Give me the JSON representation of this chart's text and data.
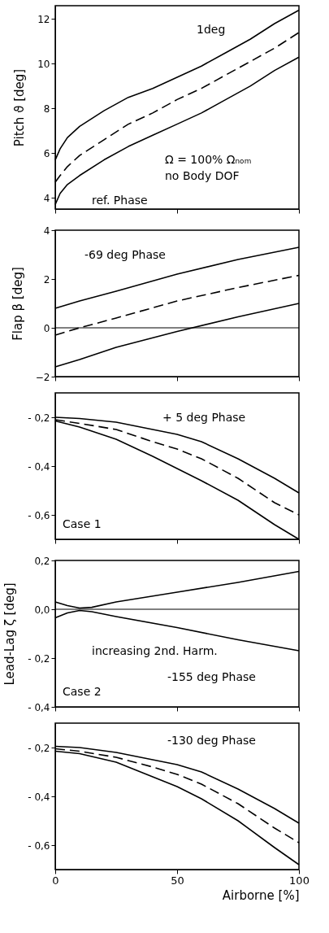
{
  "chart_data": [
    {
      "type": "line",
      "ylabel": "Pitch ϑ [deg]",
      "x": [
        0,
        2,
        5,
        10,
        20,
        30,
        40,
        50,
        60,
        70,
        80,
        90,
        100
      ],
      "series": [
        {
          "color": "#000000",
          "line_style": "solid",
          "values": [
            5.7,
            6.2,
            6.7,
            7.2,
            7.9,
            8.5,
            8.9,
            9.4,
            9.9,
            10.5,
            11.1,
            11.8,
            12.4
          ]
        },
        {
          "color": "#000000",
          "line_style": "dashed",
          "values": [
            4.7,
            5.0,
            5.4,
            5.9,
            6.6,
            7.3,
            7.8,
            8.4,
            8.9,
            9.5,
            10.1,
            10.7,
            11.4
          ]
        },
        {
          "color": "#000000",
          "line_style": "solid",
          "values": [
            3.7,
            4.2,
            4.6,
            5.0,
            5.7,
            6.3,
            6.8,
            7.3,
            7.8,
            8.4,
            9.0,
            9.7,
            10.3
          ]
        }
      ],
      "xlim": [
        0,
        100
      ],
      "xticks": [
        0,
        50,
        100
      ],
      "ylim": [
        3.5,
        12.6
      ],
      "yticks": [
        4,
        6,
        8,
        10,
        12
      ],
      "tick_labels": "y",
      "grid": false,
      "marker": "none",
      "annotations": [
        "1deg",
        "Ω = 100% Ωₙₒₘ",
        "no Body DOF",
        "ref. Phase"
      ]
    },
    {
      "type": "line",
      "ylabel": "Flap β [deg]",
      "x": [
        0,
        10,
        25,
        50,
        75,
        100
      ],
      "series": [
        {
          "color": "#000000",
          "line_style": "solid",
          "values": [
            0.8,
            1.1,
            1.5,
            2.2,
            2.8,
            3.3
          ]
        },
        {
          "color": "#000000",
          "line_style": "dashed",
          "values": [
            -0.3,
            0.0,
            0.4,
            1.1,
            1.65,
            2.15
          ]
        },
        {
          "color": "#000000",
          "line_style": "solid",
          "values": [
            -1.6,
            -1.3,
            -0.8,
            -0.15,
            0.45,
            1.0
          ]
        }
      ],
      "xlim": [
        0,
        100
      ],
      "xticks": [
        0,
        50,
        100
      ],
      "ylim": [
        -2,
        4
      ],
      "yticks": [
        -2,
        0,
        2,
        4
      ],
      "tick_labels": "y",
      "grid": false,
      "marker": "none",
      "ref_lines": [
        {
          "axis": "y",
          "value": 0
        }
      ],
      "annotations": [
        "-69 deg Phase"
      ]
    },
    {
      "type": "line",
      "x": [
        0,
        10,
        25,
        40,
        50,
        60,
        75,
        90,
        100
      ],
      "series": [
        {
          "color": "#000000",
          "line_style": "solid",
          "values": [
            -0.2,
            -0.205,
            -0.22,
            -0.25,
            -0.27,
            -0.3,
            -0.37,
            -0.45,
            -0.51
          ]
        },
        {
          "color": "#000000",
          "line_style": "dashed",
          "values": [
            -0.21,
            -0.225,
            -0.25,
            -0.3,
            -0.33,
            -0.37,
            -0.45,
            -0.55,
            -0.6
          ]
        },
        {
          "color": "#000000",
          "line_style": "solid",
          "values": [
            -0.215,
            -0.24,
            -0.29,
            -0.36,
            -0.41,
            -0.46,
            -0.54,
            -0.64,
            -0.7
          ]
        }
      ],
      "xlim": [
        0,
        100
      ],
      "xticks": [
        0,
        50,
        100
      ],
      "ylim": [
        -0.7,
        -0.1
      ],
      "yticks": [
        {
          "value": -0.2,
          "label": "- 0,2"
        },
        {
          "value": -0.4,
          "label": "- 0,4"
        },
        {
          "value": -0.6,
          "label": "- 0,6"
        }
      ],
      "tick_labels": "y",
      "grid": false,
      "marker": "none",
      "annotations": [
        "+ 5 deg Phase",
        "Case 1"
      ]
    },
    {
      "type": "line",
      "ylabel": "Lead-Lag ζ [deg]",
      "x": [
        0,
        5,
        10,
        15,
        25,
        50,
        75,
        100
      ],
      "series": [
        {
          "color": "#000000",
          "line_style": "solid",
          "values": [
            0.03,
            0.015,
            0.005,
            0.008,
            0.03,
            0.07,
            0.11,
            0.155
          ]
        },
        {
          "color": "#000000",
          "line_style": "solid",
          "values": [
            -0.035,
            -0.015,
            -0.005,
            -0.01,
            -0.03,
            -0.075,
            -0.125,
            -0.17
          ]
        }
      ],
      "xlim": [
        0,
        100
      ],
      "xticks": [
        0,
        50,
        100
      ],
      "ylim": [
        -0.4,
        0.2
      ],
      "yticks": [
        {
          "value": 0.2,
          "label": "0,2"
        },
        {
          "value": 0.0,
          "label": "0,0"
        },
        {
          "value": -0.2,
          "label": "- 0,2"
        },
        {
          "value": -0.4,
          "label": "- 0,4"
        }
      ],
      "tick_labels": "y",
      "grid": false,
      "marker": "none",
      "ref_lines": [
        {
          "axis": "y",
          "value": 0
        }
      ],
      "annotations": [
        "increasing 2nd. Harm.",
        "-155 deg Phase",
        "Case 2"
      ]
    },
    {
      "type": "line",
      "xlabel": "Airborne [%]",
      "x": [
        0,
        10,
        25,
        40,
        50,
        60,
        75,
        90,
        100
      ],
      "series": [
        {
          "color": "#000000",
          "line_style": "solid",
          "values": [
            -0.195,
            -0.2,
            -0.22,
            -0.25,
            -0.27,
            -0.3,
            -0.37,
            -0.45,
            -0.51
          ]
        },
        {
          "color": "#000000",
          "line_style": "dashed",
          "values": [
            -0.205,
            -0.215,
            -0.24,
            -0.28,
            -0.31,
            -0.35,
            -0.43,
            -0.53,
            -0.59
          ]
        },
        {
          "color": "#000000",
          "line_style": "solid",
          "values": [
            -0.215,
            -0.225,
            -0.26,
            -0.32,
            -0.36,
            -0.41,
            -0.5,
            -0.61,
            -0.68
          ]
        }
      ],
      "xlim": [
        0,
        100
      ],
      "xticks": [
        0,
        50,
        100
      ],
      "ylim": [
        -0.7,
        -0.1
      ],
      "yticks": [
        {
          "value": -0.2,
          "label": "- 0,2"
        },
        {
          "value": -0.4,
          "label": "- 0,4"
        },
        {
          "value": -0.6,
          "label": "- 0,6"
        }
      ],
      "grid": false,
      "marker": "none",
      "annotations": [
        "-130 deg Phase"
      ]
    }
  ]
}
